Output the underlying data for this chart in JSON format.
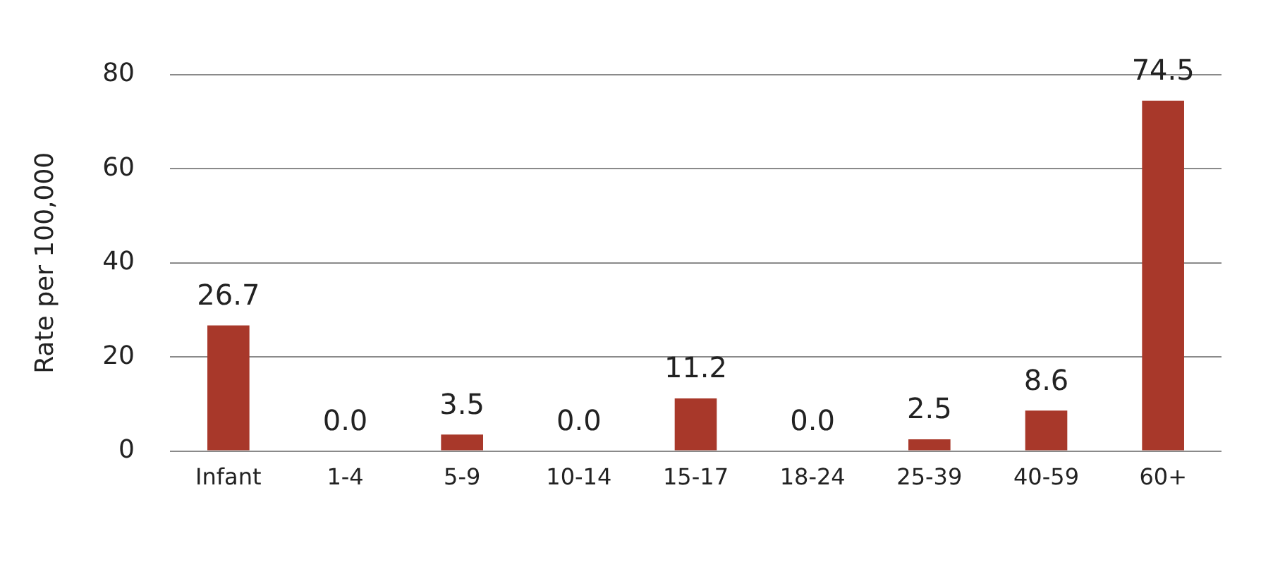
{
  "chart_data": {
    "type": "bar",
    "ylabel": "Rate per 100,000",
    "categories": [
      "Infant",
      "1-4",
      "5-9",
      "10-14",
      "15-17",
      "18-24",
      "25-39",
      "40-59",
      "60+"
    ],
    "values": [
      26.7,
      0,
      3.5,
      0,
      11.2,
      0,
      2.5,
      8.6,
      74.5
    ],
    "value_labels": [
      "26.7",
      "0.0",
      "3.5",
      "0.0",
      "11.2",
      "0.0",
      "2.5",
      "8.6",
      "74.5"
    ],
    "color": "#a8382a",
    "ylim": [
      0,
      80
    ],
    "yticks": [
      0,
      20,
      40,
      60,
      80
    ],
    "grid": "y",
    "legend": false
  }
}
